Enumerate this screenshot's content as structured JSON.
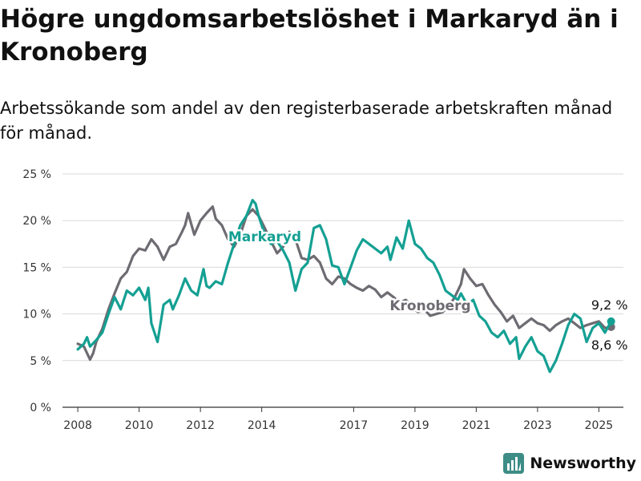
{
  "page": {
    "title": "Högre ungdomsarbetslöshet i Markaryd än i Kronoberg",
    "subtitle": "Arbetssökande som andel av den registerbaserade arbetskraften månad för månad.",
    "brand": "Newsworthy"
  },
  "colors": {
    "markaryd": "#14a093",
    "kronoberg": "#6e6b72",
    "grid": "#d9d9d9",
    "axis": "#333333",
    "brand": "#3d8d86"
  },
  "chart_data": {
    "type": "line",
    "x_unit": "year (decimal)",
    "ylim": [
      0,
      25
    ],
    "xlim": [
      2007.5,
      2025.8
    ],
    "yticks": [
      {
        "value": 0,
        "label": "0 %"
      },
      {
        "value": 5,
        "label": "5 %"
      },
      {
        "value": 10,
        "label": "10 %"
      },
      {
        "value": 15,
        "label": "15 %"
      },
      {
        "value": 20,
        "label": "20 %"
      },
      {
        "value": 25,
        "label": "25 %"
      }
    ],
    "xticks": [
      {
        "value": 2008,
        "label": "2008"
      },
      {
        "value": 2010,
        "label": "2010"
      },
      {
        "value": 2012,
        "label": "2012"
      },
      {
        "value": 2014,
        "label": "2014"
      },
      {
        "value": 2017,
        "label": "2017"
      },
      {
        "value": 2019,
        "label": "2019"
      },
      {
        "value": 2021,
        "label": "2021"
      },
      {
        "value": 2023,
        "label": "2023"
      },
      {
        "value": 2025,
        "label": "2025"
      }
    ],
    "grid": true,
    "series": [
      {
        "name": "Kronoberg",
        "color_key": "kronoberg",
        "end_label": "8,6 %",
        "points": [
          [
            2008.0,
            6.8
          ],
          [
            2008.2,
            6.5
          ],
          [
            2008.3,
            5.8
          ],
          [
            2008.4,
            5.1
          ],
          [
            2008.5,
            5.8
          ],
          [
            2008.6,
            7.0
          ],
          [
            2008.8,
            8.4
          ],
          [
            2009.0,
            10.5
          ],
          [
            2009.2,
            12.2
          ],
          [
            2009.4,
            13.8
          ],
          [
            2009.6,
            14.5
          ],
          [
            2009.8,
            16.2
          ],
          [
            2010.0,
            17.0
          ],
          [
            2010.2,
            16.8
          ],
          [
            2010.4,
            18.0
          ],
          [
            2010.6,
            17.2
          ],
          [
            2010.8,
            15.8
          ],
          [
            2011.0,
            17.2
          ],
          [
            2011.2,
            17.5
          ],
          [
            2011.4,
            18.8
          ],
          [
            2011.5,
            19.5
          ],
          [
            2011.6,
            20.8
          ],
          [
            2011.8,
            18.5
          ],
          [
            2012.0,
            20.0
          ],
          [
            2012.2,
            20.8
          ],
          [
            2012.4,
            21.5
          ],
          [
            2012.5,
            20.2
          ],
          [
            2012.7,
            19.5
          ],
          [
            2012.9,
            18.0
          ],
          [
            2013.1,
            17.2
          ],
          [
            2013.3,
            18.5
          ],
          [
            2013.5,
            20.5
          ],
          [
            2013.7,
            21.2
          ],
          [
            2013.9,
            20.5
          ],
          [
            2014.1,
            19.2
          ],
          [
            2014.3,
            17.8
          ],
          [
            2014.5,
            16.5
          ],
          [
            2014.7,
            17.2
          ],
          [
            2014.9,
            18.8
          ],
          [
            2015.1,
            18.0
          ],
          [
            2015.3,
            16.0
          ],
          [
            2015.5,
            15.8
          ],
          [
            2015.7,
            16.2
          ],
          [
            2015.9,
            15.5
          ],
          [
            2016.1,
            13.8
          ],
          [
            2016.3,
            13.2
          ],
          [
            2016.5,
            14.0
          ],
          [
            2016.7,
            13.8
          ],
          [
            2016.9,
            13.2
          ],
          [
            2017.1,
            12.8
          ],
          [
            2017.3,
            12.5
          ],
          [
            2017.5,
            13.0
          ],
          [
            2017.7,
            12.6
          ],
          [
            2017.9,
            11.8
          ],
          [
            2018.1,
            12.3
          ],
          [
            2018.3,
            11.8
          ],
          [
            2018.5,
            11.2
          ],
          [
            2018.7,
            11.5
          ],
          [
            2018.9,
            10.8
          ],
          [
            2019.1,
            10.2
          ],
          [
            2019.3,
            10.5
          ],
          [
            2019.5,
            9.8
          ],
          [
            2019.7,
            10.0
          ],
          [
            2019.9,
            10.2
          ],
          [
            2020.1,
            10.8
          ],
          [
            2020.3,
            11.8
          ],
          [
            2020.5,
            13.2
          ],
          [
            2020.6,
            14.8
          ],
          [
            2020.8,
            13.8
          ],
          [
            2021.0,
            13.0
          ],
          [
            2021.2,
            13.2
          ],
          [
            2021.4,
            12.0
          ],
          [
            2021.6,
            11.0
          ],
          [
            2021.8,
            10.2
          ],
          [
            2022.0,
            9.2
          ],
          [
            2022.2,
            9.8
          ],
          [
            2022.4,
            8.5
          ],
          [
            2022.6,
            9.0
          ],
          [
            2022.8,
            9.5
          ],
          [
            2023.0,
            9.0
          ],
          [
            2023.2,
            8.8
          ],
          [
            2023.4,
            8.2
          ],
          [
            2023.6,
            8.8
          ],
          [
            2023.8,
            9.2
          ],
          [
            2024.0,
            9.5
          ],
          [
            2024.2,
            9.0
          ],
          [
            2024.4,
            8.5
          ],
          [
            2024.6,
            8.8
          ],
          [
            2024.8,
            9.0
          ],
          [
            2025.0,
            9.2
          ],
          [
            2025.2,
            8.5
          ],
          [
            2025.4,
            8.6
          ]
        ]
      },
      {
        "name": "Markaryd",
        "color_key": "markaryd",
        "end_label": "9,2 %",
        "points": [
          [
            2008.0,
            6.2
          ],
          [
            2008.2,
            6.8
          ],
          [
            2008.3,
            7.5
          ],
          [
            2008.4,
            6.5
          ],
          [
            2008.6,
            7.2
          ],
          [
            2008.8,
            8.0
          ],
          [
            2009.0,
            10.0
          ],
          [
            2009.2,
            11.8
          ],
          [
            2009.4,
            10.5
          ],
          [
            2009.6,
            12.5
          ],
          [
            2009.8,
            12.0
          ],
          [
            2010.0,
            12.8
          ],
          [
            2010.2,
            11.5
          ],
          [
            2010.3,
            12.8
          ],
          [
            2010.4,
            9.0
          ],
          [
            2010.6,
            7.0
          ],
          [
            2010.8,
            11.0
          ],
          [
            2011.0,
            11.5
          ],
          [
            2011.1,
            10.5
          ],
          [
            2011.3,
            12.0
          ],
          [
            2011.5,
            13.8
          ],
          [
            2011.7,
            12.5
          ],
          [
            2011.9,
            12.0
          ],
          [
            2012.1,
            14.8
          ],
          [
            2012.2,
            13.0
          ],
          [
            2012.3,
            12.8
          ],
          [
            2012.5,
            13.5
          ],
          [
            2012.7,
            13.2
          ],
          [
            2012.9,
            15.5
          ],
          [
            2013.1,
            17.5
          ],
          [
            2013.3,
            19.5
          ],
          [
            2013.5,
            20.5
          ],
          [
            2013.7,
            22.2
          ],
          [
            2013.8,
            21.8
          ],
          [
            2013.9,
            20.5
          ],
          [
            2014.1,
            18.5
          ],
          [
            2014.3,
            17.5
          ],
          [
            2014.5,
            17.8
          ],
          [
            2014.7,
            16.8
          ],
          [
            2014.9,
            15.5
          ],
          [
            2015.1,
            12.5
          ],
          [
            2015.3,
            14.8
          ],
          [
            2015.5,
            15.5
          ],
          [
            2015.7,
            19.2
          ],
          [
            2015.9,
            19.5
          ],
          [
            2016.1,
            18.0
          ],
          [
            2016.3,
            15.2
          ],
          [
            2016.5,
            15.0
          ],
          [
            2016.7,
            13.2
          ],
          [
            2016.9,
            15.0
          ],
          [
            2017.1,
            16.8
          ],
          [
            2017.3,
            18.0
          ],
          [
            2017.5,
            17.5
          ],
          [
            2017.7,
            17.0
          ],
          [
            2017.9,
            16.5
          ],
          [
            2018.1,
            17.2
          ],
          [
            2018.2,
            15.8
          ],
          [
            2018.4,
            18.2
          ],
          [
            2018.6,
            17.0
          ],
          [
            2018.8,
            20.0
          ],
          [
            2019.0,
            17.5
          ],
          [
            2019.2,
            17.0
          ],
          [
            2019.4,
            16.0
          ],
          [
            2019.6,
            15.5
          ],
          [
            2019.8,
            14.2
          ],
          [
            2020.0,
            12.5
          ],
          [
            2020.2,
            12.0
          ],
          [
            2020.4,
            11.5
          ],
          [
            2020.5,
            12.2
          ],
          [
            2020.7,
            11.0
          ],
          [
            2020.9,
            11.5
          ],
          [
            2021.1,
            9.8
          ],
          [
            2021.3,
            9.2
          ],
          [
            2021.5,
            8.0
          ],
          [
            2021.7,
            7.5
          ],
          [
            2021.9,
            8.2
          ],
          [
            2022.1,
            6.8
          ],
          [
            2022.3,
            7.5
          ],
          [
            2022.4,
            5.2
          ],
          [
            2022.6,
            6.5
          ],
          [
            2022.8,
            7.5
          ],
          [
            2023.0,
            6.0
          ],
          [
            2023.2,
            5.5
          ],
          [
            2023.4,
            3.8
          ],
          [
            2023.6,
            5.0
          ],
          [
            2023.8,
            6.8
          ],
          [
            2024.0,
            8.8
          ],
          [
            2024.2,
            10.0
          ],
          [
            2024.4,
            9.5
          ],
          [
            2024.6,
            7.0
          ],
          [
            2024.8,
            8.5
          ],
          [
            2025.0,
            9.0
          ],
          [
            2025.2,
            8.0
          ],
          [
            2025.4,
            9.2
          ]
        ]
      }
    ]
  }
}
